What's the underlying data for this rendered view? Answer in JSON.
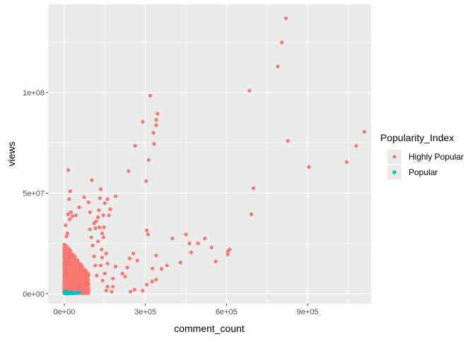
{
  "chart_data": {
    "type": "scatter",
    "title": "",
    "xlabel": "comment_count",
    "ylabel": "views",
    "xlim": [
      -60000,
      1135000
    ],
    "ylim": [
      -5000000,
      144000000
    ],
    "x_ticks": [
      {
        "value": 0,
        "label": "0e+00"
      },
      {
        "value": 300000,
        "label": "3e+05"
      },
      {
        "value": 600000,
        "label": "6e+05"
      },
      {
        "value": 900000,
        "label": "9e+05"
      }
    ],
    "y_ticks": [
      {
        "value": 0,
        "label": "0e+00"
      },
      {
        "value": 50000000,
        "label": "5e+07"
      },
      {
        "value": 100000000,
        "label": "1e+08"
      }
    ],
    "grid": true,
    "legend_position": "right",
    "legend": {
      "title": "Popularity_Index",
      "items": [
        {
          "label": "Highly Popular",
          "color": "#F8766D"
        },
        {
          "label": "Popular",
          "color": "#00BFC4"
        }
      ]
    },
    "series": [
      {
        "name": "Highly Popular",
        "color": "#F8766D",
        "points": [
          [
            820000,
            137000000
          ],
          [
            805000,
            125000000
          ],
          [
            790000,
            113000000
          ],
          [
            685000,
            101000000
          ],
          [
            1110000,
            80500000
          ],
          [
            1080000,
            73500000
          ],
          [
            1045000,
            65500000
          ],
          [
            905000,
            63000000
          ],
          [
            827000,
            76000000
          ],
          [
            700000,
            52500000
          ],
          [
            692000,
            39500000
          ],
          [
            318000,
            98500000
          ],
          [
            345000,
            89500000
          ],
          [
            340000,
            86500000
          ],
          [
            340000,
            83800000
          ],
          [
            290000,
            85500000
          ],
          [
            330000,
            80000000
          ],
          [
            262000,
            73500000
          ],
          [
            332000,
            74500000
          ],
          [
            312000,
            66500000
          ],
          [
            238000,
            61000000
          ],
          [
            303000,
            56000000
          ],
          [
            305000,
            31500000
          ],
          [
            310000,
            29500000
          ],
          [
            340000,
            19000000
          ],
          [
            326000,
            12500000
          ],
          [
            360000,
            12300000
          ],
          [
            380000,
            14000000
          ],
          [
            400000,
            27500000
          ],
          [
            450000,
            29500000
          ],
          [
            470000,
            20500000
          ],
          [
            463000,
            25000000
          ],
          [
            495000,
            25000000
          ],
          [
            520000,
            27500000
          ],
          [
            560000,
            16000000
          ],
          [
            612000,
            22000000
          ],
          [
            605000,
            21000000
          ],
          [
            605000,
            19500000
          ],
          [
            545000,
            23000000
          ],
          [
            430000,
            15500000
          ],
          [
            325000,
            6000000
          ],
          [
            340000,
            7000000
          ],
          [
            305000,
            4500000
          ],
          [
            290000,
            1500000
          ],
          [
            260000,
            2000000
          ],
          [
            245000,
            1000000
          ],
          [
            270000,
            16500000
          ],
          [
            242000,
            17500000
          ],
          [
            255000,
            20000000
          ],
          [
            233000,
            13000000
          ],
          [
            225000,
            8500000
          ],
          [
            215000,
            10000000
          ],
          [
            190000,
            13500000
          ],
          [
            180000,
            3500000
          ],
          [
            175000,
            1000000
          ],
          [
            180000,
            7500000
          ],
          [
            160000,
            15000000
          ],
          [
            155000,
            20000000
          ],
          [
            145000,
            28000000
          ],
          [
            140000,
            30000000
          ],
          [
            147000,
            33000000
          ],
          [
            145000,
            39000000
          ],
          [
            150000,
            45000000
          ],
          [
            160000,
            47000000
          ],
          [
            190000,
            48500000
          ],
          [
            170000,
            42000000
          ],
          [
            165000,
            39000000
          ],
          [
            135000,
            52000000
          ],
          [
            132000,
            47500000
          ],
          [
            128000,
            41500000
          ],
          [
            125000,
            38000000
          ],
          [
            115000,
            32500000
          ],
          [
            110000,
            35000000
          ],
          [
            102000,
            56500000
          ],
          [
            95000,
            40500000
          ],
          [
            90000,
            45500000
          ],
          [
            73000,
            48000000
          ],
          [
            55000,
            43000000
          ],
          [
            43000,
            39000000
          ],
          [
            30000,
            38500000
          ],
          [
            25000,
            40500000
          ],
          [
            20000,
            37000000
          ],
          [
            15000,
            61500000
          ],
          [
            22000,
            51000000
          ],
          [
            18000,
            47000000
          ],
          [
            14000,
            39500000
          ],
          [
            5000,
            34000000
          ],
          [
            8000,
            28500000
          ],
          [
            12000,
            30000000
          ],
          [
            138000,
            22000000
          ],
          [
            140000,
            18000000
          ],
          [
            150000,
            10000000
          ],
          [
            142000,
            6500000
          ],
          [
            160000,
            3500000
          ],
          [
            155000,
            1500000
          ],
          [
            120000,
            9000000
          ],
          [
            115000,
            14000000
          ],
          [
            110000,
            18500000
          ],
          [
            105000,
            24000000
          ],
          [
            100000,
            28000000
          ],
          [
            95000,
            32000000
          ],
          [
            125000,
            26000000
          ],
          [
            130000,
            33000000
          ],
          [
            118000,
            36000000
          ],
          [
            135000,
            14000000
          ]
        ]
      },
      {
        "name": "Popular",
        "color": "#00BFC4",
        "points": [
          [
            500,
            200000
          ],
          [
            1500,
            350000
          ],
          [
            2500,
            150000
          ],
          [
            3500,
            500000
          ],
          [
            5000,
            250000
          ],
          [
            7000,
            400000
          ],
          [
            9000,
            150000
          ],
          [
            12000,
            300000
          ],
          [
            15000,
            100000
          ],
          [
            18000,
            350000
          ],
          [
            22000,
            250000
          ],
          [
            26000,
            500000
          ],
          [
            30000,
            150000
          ],
          [
            35000,
            300000
          ],
          [
            40000,
            200000
          ],
          [
            48000,
            400000
          ],
          [
            55000,
            600000
          ],
          [
            600,
            600000
          ],
          [
            2000,
            900000
          ],
          [
            4000,
            750000
          ],
          [
            6000,
            1000000
          ],
          [
            8500,
            700000
          ],
          [
            11000,
            850000
          ],
          [
            14000,
            600000
          ],
          [
            20000,
            700000
          ]
        ]
      }
    ]
  }
}
